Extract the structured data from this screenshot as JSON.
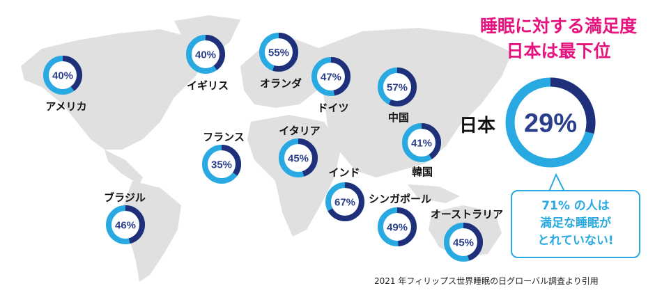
{
  "header": {
    "title_line1": "睡眠に対する満足度",
    "title_line2": "日本は最下位"
  },
  "japan_label": "日本",
  "callout": {
    "line1": "71% の人は",
    "line2": "満足な睡眠が",
    "line3": "とれていない!"
  },
  "source": "2021 年フィリップス世界睡眠の日グローバル調査より引用",
  "colors": {
    "ring_dark": "#1f2f7a",
    "ring_light": "#29a9e1",
    "title": "#e6147f",
    "map": "#e0e0e0"
  },
  "chart_data": {
    "type": "donut",
    "title": "睡眠に対する満足度",
    "unit": "%",
    "series": [
      {
        "label": "アメリカ",
        "value": 40,
        "display": "40%"
      },
      {
        "label": "イギリス",
        "value": 40,
        "display": "40%"
      },
      {
        "label": "オランダ",
        "value": 55,
        "display": "55%"
      },
      {
        "label": "ドイツ",
        "value": 47,
        "display": "47%"
      },
      {
        "label": "中国",
        "value": 57,
        "display": "57%"
      },
      {
        "label": "フランス",
        "value": 35,
        "display": "35%"
      },
      {
        "label": "イタリア",
        "value": 45,
        "display": "45%"
      },
      {
        "label": "韓国",
        "value": 41,
        "display": "41%"
      },
      {
        "label": "インド",
        "value": 67,
        "display": "67%"
      },
      {
        "label": "ブラジル",
        "value": 46,
        "display": "46%"
      },
      {
        "label": "シンガポール",
        "value": 49,
        "display": "49%"
      },
      {
        "label": "オーストラリア",
        "value": 45,
        "display": "45%"
      },
      {
        "label": "日本",
        "value": 29,
        "display": "29%"
      }
    ]
  }
}
